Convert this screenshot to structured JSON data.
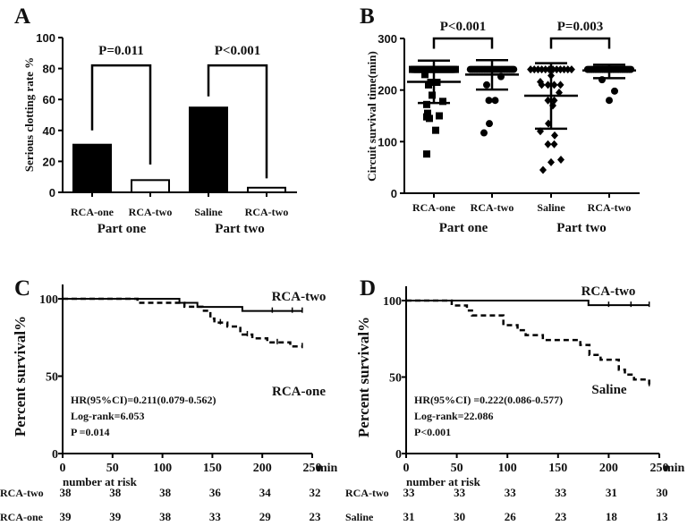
{
  "chart_data": [
    {
      "panel": "A",
      "type": "bar",
      "ylabel": "Serious clotting rate %",
      "ylim": [
        0,
        100
      ],
      "yticks": [
        "0",
        "20",
        "40",
        "60",
        "80",
        "100"
      ],
      "categories": [
        "RCA-one",
        "RCA-two",
        "Saline",
        "RCA-two"
      ],
      "values": [
        30.8,
        7.9,
        54.8,
        3.0
      ],
      "fills": [
        "#000000",
        "#ffffff",
        "#000000",
        "#ffffff"
      ],
      "groups": [
        "Part one",
        "Part two"
      ],
      "comparisons": [
        {
          "label": "P=0.011",
          "top": 82,
          "left_end": 40,
          "right_end": 18
        },
        {
          "label": "P<0.001",
          "top": 82,
          "left_end": 62,
          "right_end": 9
        }
      ]
    },
    {
      "panel": "B",
      "type": "scatter",
      "ylabel": "Circuit survival time(min)",
      "ylim": [
        0,
        300
      ],
      "yticks": [
        "0",
        "100",
        "200",
        "300"
      ],
      "categories": [
        "RCA-one",
        "RCA-two",
        "Saline",
        "RCA-two"
      ],
      "groups": [
        "Part one",
        "Part two"
      ],
      "markers": [
        "square",
        "circle",
        "diamond",
        "circle"
      ],
      "series": [
        {
          "name": "RCA-one",
          "center": 216,
          "err": [
            175,
            257
          ],
          "points": [
            [
              240,
              25
            ],
            [
              230,
              1
            ],
            [
              215,
              2
            ],
            [
              210,
              1
            ],
            [
              190,
              1
            ],
            [
              178,
              1
            ],
            [
              172,
              1
            ],
            [
              155,
              1
            ],
            [
              150,
              1
            ],
            [
              148,
              1
            ],
            [
              145,
              1
            ],
            [
              122,
              1
            ],
            [
              76,
              1
            ]
          ]
        },
        {
          "name": "RCA-two",
          "center": 230,
          "err": [
            201,
            258
          ],
          "points": [
            [
              240,
              32
            ],
            [
              226,
              1
            ],
            [
              210,
              1
            ],
            [
              180,
              2
            ],
            [
              135,
              1
            ],
            [
              117,
              1
            ]
          ]
        },
        {
          "name": "Saline",
          "center": 189,
          "err": [
            125,
            252
          ],
          "points": [
            [
              240,
              12
            ],
            [
              228,
              1
            ],
            [
              216,
              1
            ],
            [
              210,
              4
            ],
            [
              195,
              1
            ],
            [
              180,
              2
            ],
            [
              170,
              1
            ],
            [
              135,
              1
            ],
            [
              120,
              1
            ],
            [
              112,
              1
            ],
            [
              95,
              2
            ],
            [
              65,
              1
            ],
            [
              60,
              1
            ],
            [
              45,
              1
            ]
          ]
        },
        {
          "name": "RCA-two",
          "center": 238,
          "err": [
            223,
            249
          ],
          "points": [
            [
              240,
              30
            ],
            [
              220,
              1
            ],
            [
              198,
              1
            ],
            [
              180,
              1
            ]
          ]
        }
      ],
      "comparisons": [
        {
          "label": "P<0.001",
          "top": 300,
          "left_end": 280,
          "right_end": 280
        },
        {
          "label": "P=0.003",
          "top": 300,
          "left_end": 280,
          "right_end": 280
        }
      ]
    },
    {
      "panel": "C",
      "type": "line",
      "ylabel": "Percent survival%",
      "xlim": [
        0,
        250
      ],
      "ylim": [
        0,
        100
      ],
      "xticks": [
        "0",
        "50",
        "100",
        "150",
        "200",
        "250"
      ],
      "yticks": [
        "0",
        "50",
        "100"
      ],
      "xunit": "min",
      "series": [
        {
          "name": "RCA-two",
          "dash": false,
          "steps": [
            [
              0,
              100
            ],
            [
              117,
              97.4
            ],
            [
              135,
              94.7
            ],
            [
              180,
              92.1
            ],
            [
              240,
              92.1
            ]
          ],
          "censored": [
            210,
            230,
            240
          ]
        },
        {
          "name": "RCA-one",
          "dash": true,
          "steps": [
            [
              0,
              100
            ],
            [
              75,
              97.4
            ],
            [
              122,
              94.9
            ],
            [
              140,
              92.3
            ],
            [
              148,
              87.2
            ],
            [
              152,
              84.6
            ],
            [
              165,
              82.1
            ],
            [
              178,
              76.9
            ],
            [
              190,
              74.4
            ],
            [
              205,
              71.8
            ],
            [
              228,
              69.2
            ],
            [
              240,
              69.2
            ]
          ],
          "censored": [
            158,
            185,
            215,
            240
          ]
        }
      ],
      "annotations": [
        "HR(95%CI)=0.211(0.079-0.562)",
        "Log-rank=6.053",
        "P =0.014"
      ],
      "risk_title": "number at risk",
      "risk_table": [
        {
          "label": "RCA-two",
          "values": [
            "38",
            "38",
            "38",
            "36",
            "34",
            "32"
          ]
        },
        {
          "label": "RCA-one",
          "values": [
            "39",
            "39",
            "38",
            "33",
            "29",
            "23"
          ]
        }
      ]
    },
    {
      "panel": "D",
      "type": "line",
      "ylabel": "Percent survival%",
      "xlim": [
        0,
        250
      ],
      "ylim": [
        0,
        100
      ],
      "xticks": [
        "0",
        "50",
        "100",
        "150",
        "200",
        "250"
      ],
      "yticks": [
        "0",
        "50",
        "100"
      ],
      "xunit": "min",
      "series": [
        {
          "name": "RCA-two",
          "dash": false,
          "steps": [
            [
              0,
              100
            ],
            [
              180,
              97
            ],
            [
              240,
              97
            ]
          ],
          "censored": [
            200,
            222,
            240
          ]
        },
        {
          "name": "Saline",
          "dash": true,
          "steps": [
            [
              0,
              100
            ],
            [
              45,
              96.8
            ],
            [
              60,
              93.5
            ],
            [
              65,
              90.3
            ],
            [
              96,
              83.9
            ],
            [
              110,
              80.6
            ],
            [
              118,
              77.4
            ],
            [
              135,
              74.2
            ],
            [
              172,
              71
            ],
            [
              181,
              64.5
            ],
            [
              192,
              61.3
            ],
            [
              210,
              54.8
            ],
            [
              216,
              51.6
            ],
            [
              225,
              48.4
            ],
            [
              240,
              45.2
            ]
          ],
          "censored": [
            240
          ]
        }
      ],
      "annotations": [
        "HR(95%CI) =0.222(0.086-0.577)",
        "Log-rank=22.086",
        "P<0.001"
      ],
      "risk_title": "number at risk",
      "risk_table": [
        {
          "label": "RCA-two",
          "values": [
            "33",
            "33",
            "33",
            "33",
            "31",
            "30"
          ]
        },
        {
          "label": "Saline",
          "values": [
            "31",
            "30",
            "26",
            "23",
            "18",
            "13"
          ]
        }
      ]
    }
  ]
}
